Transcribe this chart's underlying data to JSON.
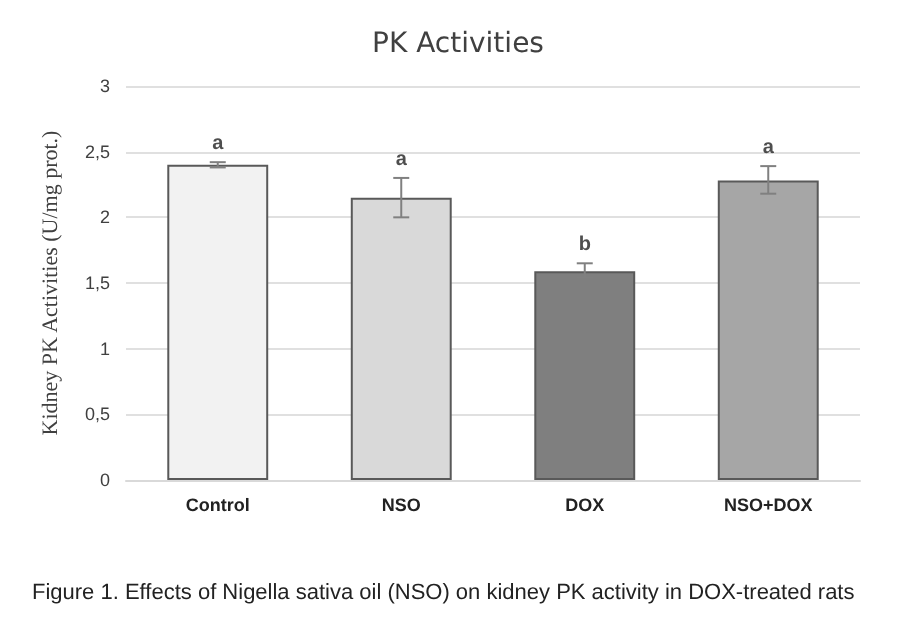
{
  "chart_data": {
    "type": "bar",
    "title": "PK Activities",
    "ylabel": "Kidney PK Activities (U/mg prot.)",
    "categories": [
      "Control",
      "NSO",
      "DOX",
      "NSO+DOX"
    ],
    "values": [
      2.4,
      2.15,
      1.59,
      2.28
    ],
    "colors": [
      "#f2f2f2",
      "#d9d9d9",
      "#7f7f7f",
      "#a6a6a6"
    ],
    "errors": [
      0.02,
      0.15,
      [
        1.54,
        1.65
      ],
      [
        2.18,
        2.39
      ]
    ],
    "ylim": [
      0,
      3
    ],
    "yticks": [
      0,
      {
        "value": 0.5,
        "label": "0,5"
      },
      1,
      {
        "value": 1.5,
        "label": "1,5"
      },
      2,
      {
        "value": 2.5,
        "label": "2,5"
      },
      3
    ],
    "grid": "y",
    "annotations": [
      "a",
      "a",
      "b",
      "a",
      "Figure 1. Effects of Nigella sativa oil (NSO) on kidney PK activity in DOX-treated rats"
    ]
  }
}
